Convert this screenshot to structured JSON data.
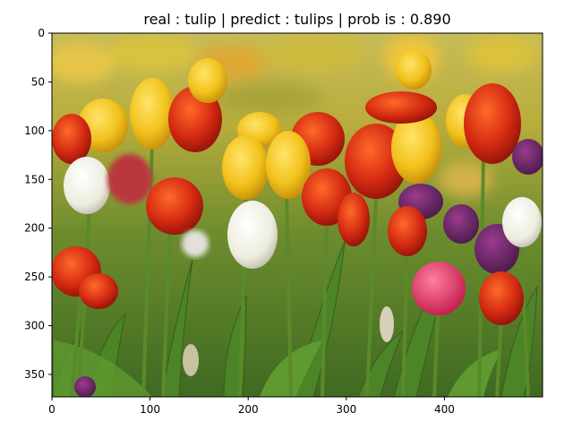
{
  "chart_data": {
    "type": "image",
    "title": "real : tulip | predict : tulips | prob is : 0.890",
    "xlabel": "",
    "ylabel": "",
    "xlim": [
      0,
      500
    ],
    "ylim": [
      0,
      373
    ],
    "y_inverted": true,
    "x_ticks": [
      0,
      100,
      200,
      300,
      400
    ],
    "y_ticks": [
      0,
      50,
      100,
      150,
      200,
      250,
      300,
      350
    ],
    "image_subject": "tulip field",
    "colors": {
      "red": "#d42a12",
      "yellow": "#f2c21c",
      "white": "#eeeee6",
      "purple": "#6a2a6a",
      "green": "#4f7f2a",
      "background_blur": "#b7b13a"
    }
  }
}
